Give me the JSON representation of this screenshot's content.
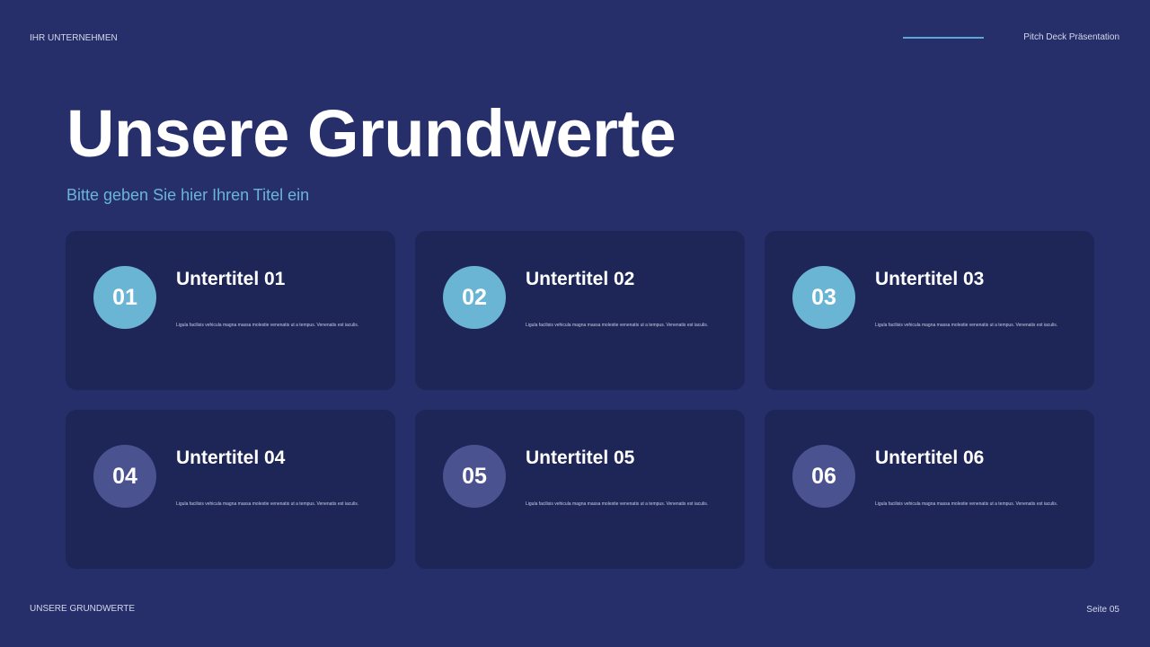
{
  "header": {
    "company": "IHR UNTERNEHMEN",
    "deck": "Pitch Deck Präsentation",
    "accent": "#5aa8d8"
  },
  "title": "Unsere Grundwerte",
  "subtitle": "Bitte geben Sie hier Ihren Titel ein",
  "cards": [
    {
      "number": "01",
      "title": "Untertitel 01",
      "text": "Ligula facilisis vehicula magna massa molestie venenatis ut a tempus. Venenatis est iaculis."
    },
    {
      "number": "02",
      "title": "Untertitel 02",
      "text": "Ligula facilisis vehicula magna massa molestie venenatis ut a tempus. Venenatis est iaculis."
    },
    {
      "number": "03",
      "title": "Untertitel 03",
      "text": "Ligula facilisis vehicula magna massa molestie venenatis ut a tempus. Venenatis est iaculis."
    },
    {
      "number": "04",
      "title": "Untertitel 04",
      "text": "Ligula facilisis vehicula magna massa molestie venenatis ut a tempus. Venenatis est iaculis."
    },
    {
      "number": "05",
      "title": "Untertitel 05",
      "text": "Ligula facilisis vehicula magna massa molestie venenatis ut a tempus. Venenatis est iaculis."
    },
    {
      "number": "06",
      "title": "Untertitel 06",
      "text": "Ligula facilisis vehicula magna massa molestie venenatis ut a tempus. Venenatis est iaculis."
    }
  ],
  "footer": {
    "section": "UNSERE GRUNDWERTE",
    "page": "Seite 05"
  }
}
